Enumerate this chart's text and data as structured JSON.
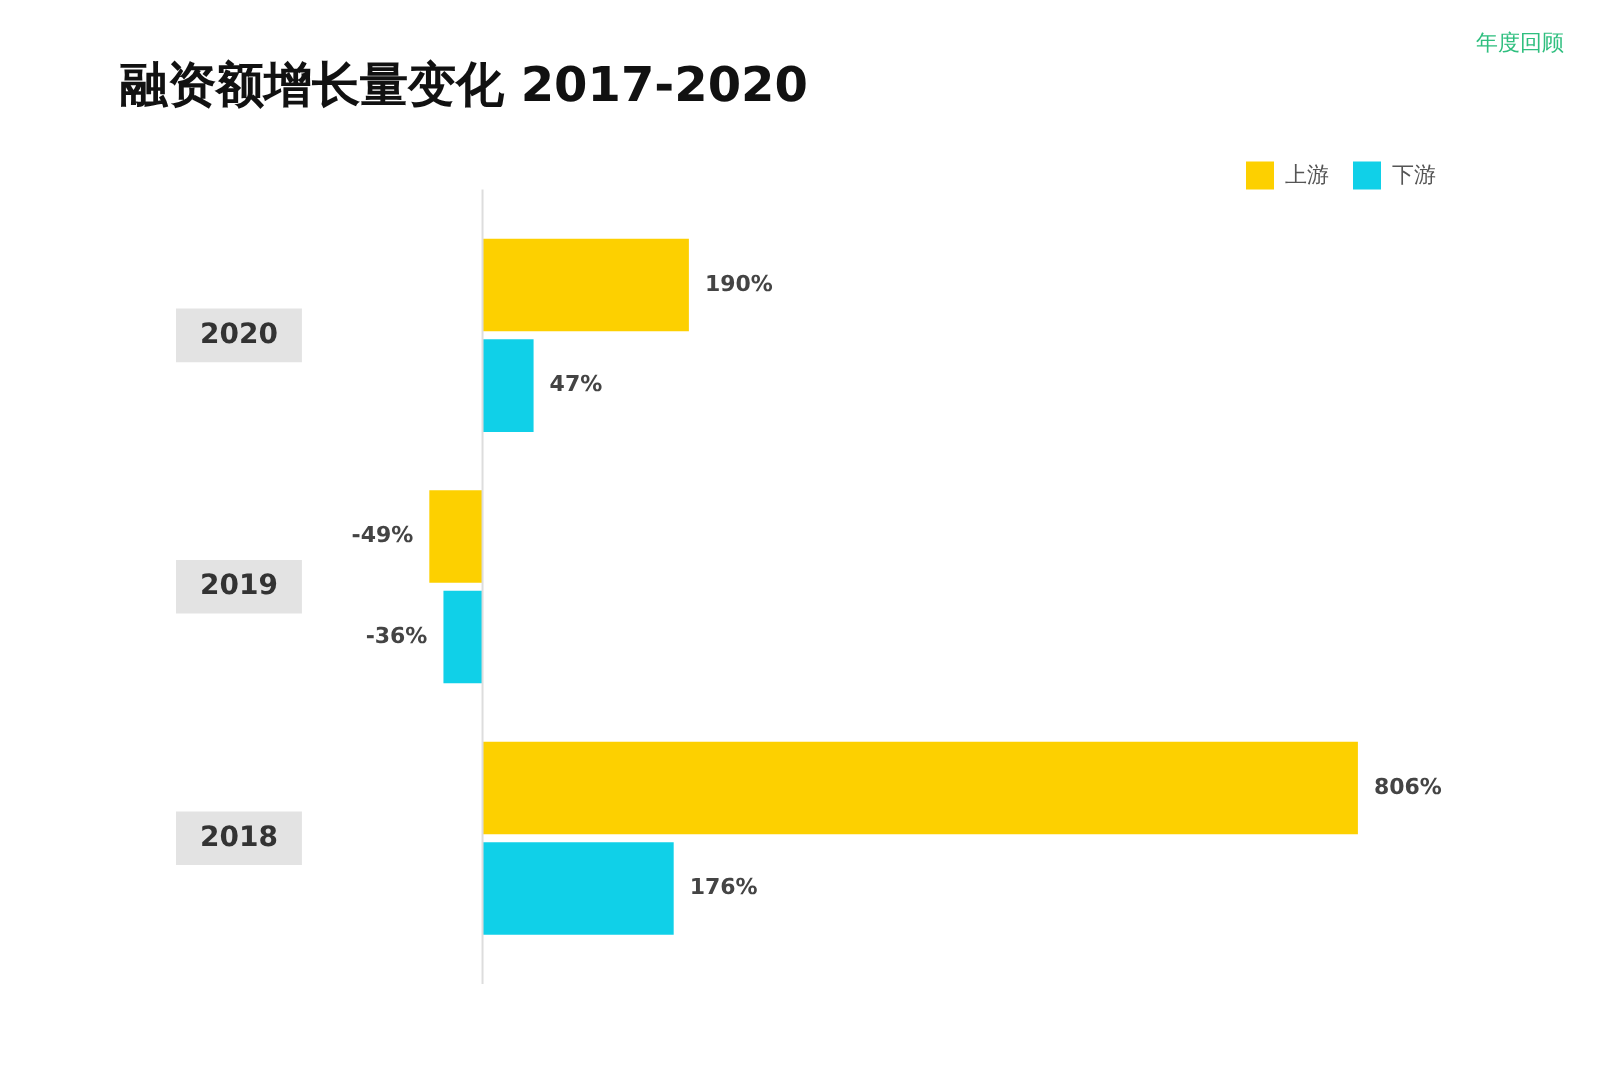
{
  "chart_data": {
    "type": "bar",
    "orientation": "horizontal",
    "title": "融资额增长量变化 2017-2020",
    "annotations": [
      "年度回顾"
    ],
    "categories": [
      "2020",
      "2019",
      "2018"
    ],
    "series": [
      {
        "name": "上游",
        "color": "#fdd000",
        "values": [
          190,
          -49,
          806
        ],
        "value_labels": [
          "190%",
          "-49%",
          "806%"
        ]
      },
      {
        "name": "下游",
        "color": "#10d0e8",
        "values": [
          47,
          -36,
          176
        ],
        "value_labels": [
          "47%",
          "-36%",
          "176%"
        ]
      }
    ],
    "legend": "top right",
    "tick_labels": "y"
  }
}
